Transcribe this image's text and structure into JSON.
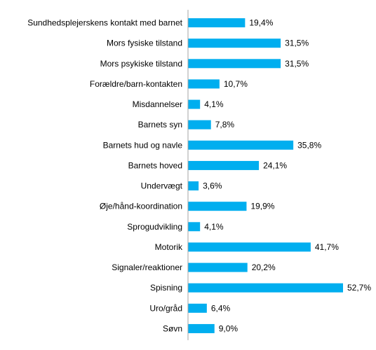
{
  "chart_data": {
    "type": "bar",
    "orientation": "horizontal",
    "categories": [
      "Sundhedsplejerskens kontakt med barnet",
      "Mors fysiske tilstand",
      "Mors psykiske tilstand",
      "Forældre/barn-kontakten",
      "Misdannelser",
      "Barnets syn",
      "Barnets hud og navle",
      "Barnets hoved",
      "Undervægt",
      "Øje/hånd-koordination",
      "Sprogudvikling",
      "Motorik",
      "Signaler/reaktioner",
      "Spisning",
      "Uro/gråd",
      "Søvn"
    ],
    "values": [
      19.4,
      31.5,
      31.5,
      10.7,
      4.1,
      7.8,
      35.8,
      24.1,
      3.6,
      19.9,
      4.1,
      41.7,
      20.2,
      52.7,
      6.4,
      9.0
    ],
    "value_labels": [
      "19,4%",
      "31,5%",
      "31,5%",
      "10,7%",
      "4,1%",
      "7,8%",
      "35,8%",
      "24,1%",
      "3,6%",
      "19,9%",
      "4,1%",
      "41,7%",
      "20,2%",
      "52,7%",
      "6,4%",
      "9,0%"
    ],
    "title": "",
    "xlabel": "",
    "ylabel": "",
    "xlim": [
      0,
      60
    ],
    "grid": false,
    "legend": "none",
    "colors": {
      "bar": "#00AEEF",
      "axis": "#A6A6A6"
    }
  }
}
